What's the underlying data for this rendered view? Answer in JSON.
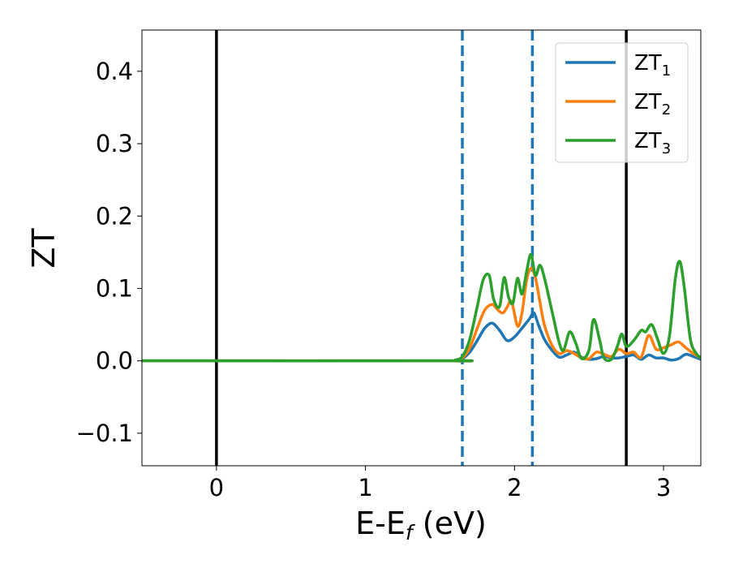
{
  "chart_data": {
    "type": "line",
    "xlabel": "E-E",
    "xlabel_sub": "f",
    "xlabel_unit": " (eV)",
    "ylabel": "ZT",
    "xlim": [
      -0.5,
      3.25
    ],
    "ylim": [
      -0.145,
      0.457
    ],
    "xticks": [
      {
        "v": 0,
        "label": "0"
      },
      {
        "v": 1,
        "label": "1"
      },
      {
        "v": 2,
        "label": "2"
      },
      {
        "v": 3,
        "label": "3"
      }
    ],
    "yticks": [
      {
        "v": -0.1,
        "label": "−0.1"
      },
      {
        "v": 0.0,
        "label": "0.0"
      },
      {
        "v": 0.1,
        "label": "0.1"
      },
      {
        "v": 0.2,
        "label": "0.2"
      },
      {
        "v": 0.3,
        "label": "0.3"
      },
      {
        "v": 0.4,
        "label": "0.4"
      }
    ],
    "grid": false,
    "legend_position": "top-right",
    "vlines": [
      {
        "x": 0.0,
        "style": "solid",
        "color": "#000000"
      },
      {
        "x": 2.75,
        "style": "solid",
        "color": "#000000"
      },
      {
        "x": 1.65,
        "style": "dashed",
        "color": "#1f77b4"
      },
      {
        "x": 2.12,
        "style": "dashed",
        "color": "#1f77b4"
      }
    ],
    "series": [
      {
        "name": "ZT",
        "sub": "1",
        "color": "#1f77b4",
        "x": [
          -0.5,
          1.55,
          1.6,
          1.65,
          1.7,
          1.75,
          1.8,
          1.85,
          1.9,
          1.95,
          2.0,
          2.05,
          2.1,
          2.13,
          2.16,
          2.2,
          2.25,
          2.3,
          2.35,
          2.4,
          2.45,
          2.5,
          2.55,
          2.6,
          2.65,
          2.7,
          2.75,
          2.8,
          2.85,
          2.9,
          2.95,
          3.0,
          3.05,
          3.1,
          3.15,
          3.2,
          3.25
        ],
        "y": [
          0.0,
          0.0,
          0.0,
          0.003,
          0.012,
          0.028,
          0.045,
          0.052,
          0.042,
          0.028,
          0.033,
          0.045,
          0.058,
          0.066,
          0.05,
          0.03,
          0.015,
          0.005,
          0.008,
          0.012,
          0.005,
          0.002,
          0.003,
          0.006,
          0.004,
          0.004,
          0.006,
          0.008,
          0.002,
          0.008,
          0.004,
          0.004,
          0.001,
          0.003,
          0.009,
          0.006,
          0.002
        ]
      },
      {
        "name": "ZT",
        "sub": "2",
        "color": "#ff7f0e",
        "x": [
          -0.5,
          1.55,
          1.6,
          1.65,
          1.7,
          1.75,
          1.8,
          1.85,
          1.88,
          1.92,
          1.95,
          1.98,
          2.02,
          2.05,
          2.08,
          2.11,
          2.14,
          2.17,
          2.2,
          2.25,
          2.3,
          2.35,
          2.4,
          2.45,
          2.5,
          2.55,
          2.6,
          2.65,
          2.7,
          2.75,
          2.8,
          2.85,
          2.9,
          2.95,
          3.0,
          3.05,
          3.1,
          3.15,
          3.2,
          3.25
        ],
        "y": [
          0.0,
          0.0,
          0.0,
          0.004,
          0.018,
          0.045,
          0.07,
          0.078,
          0.072,
          0.066,
          0.074,
          0.082,
          0.048,
          0.066,
          0.11,
          0.128,
          0.115,
          0.082,
          0.05,
          0.022,
          0.01,
          0.014,
          0.01,
          0.004,
          0.003,
          0.012,
          0.009,
          0.006,
          0.016,
          0.01,
          0.012,
          0.005,
          0.035,
          0.016,
          0.018,
          0.022,
          0.026,
          0.018,
          0.01,
          0.004
        ]
      },
      {
        "name": "ZT",
        "sub": "3",
        "color": "#2ca02c",
        "x": [
          -0.5,
          1.55,
          1.6,
          1.65,
          1.7,
          1.75,
          1.79,
          1.83,
          1.86,
          1.9,
          1.93,
          1.96,
          1.99,
          2.02,
          2.05,
          2.08,
          2.11,
          2.14,
          2.17,
          2.2,
          2.25,
          2.3,
          2.33,
          2.37,
          2.41,
          2.45,
          2.5,
          2.53,
          2.57,
          2.6,
          2.65,
          2.69,
          2.72,
          2.75,
          2.8,
          2.85,
          2.88,
          2.92,
          2.96,
          3.0,
          3.04,
          3.08,
          3.11,
          3.14,
          3.18,
          3.22,
          3.25
        ],
        "y": [
          0.0,
          0.0,
          0.001,
          0.006,
          0.03,
          0.075,
          0.112,
          0.118,
          0.085,
          0.075,
          0.115,
          0.088,
          0.08,
          0.114,
          0.092,
          0.122,
          0.147,
          0.118,
          0.132,
          0.115,
          0.07,
          0.025,
          0.015,
          0.04,
          0.025,
          0.003,
          0.015,
          0.057,
          0.03,
          0.004,
          0.002,
          0.02,
          0.037,
          0.02,
          0.028,
          0.042,
          0.04,
          0.05,
          0.03,
          0.01,
          0.035,
          0.115,
          0.137,
          0.1,
          0.03,
          0.01,
          0.004
        ]
      }
    ]
  }
}
